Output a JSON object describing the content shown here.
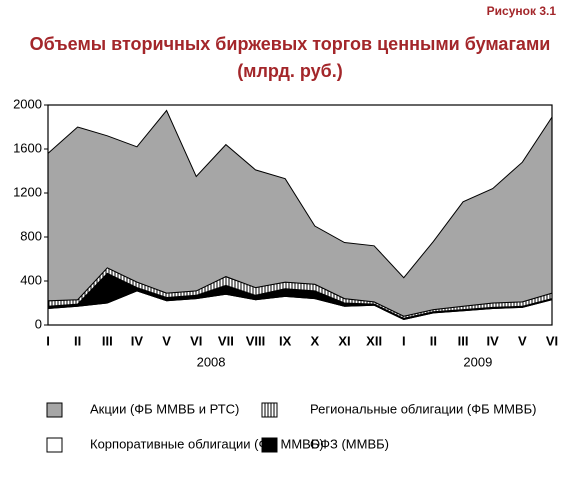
{
  "chart_data": {
    "type": "stacked_area",
    "figure_label": "Рисунок 3.1",
    "title": [
      "Объемы вторичных биржевых торгов ценными бумагами",
      "(млрд. руб.)"
    ],
    "categories": [
      "I",
      "II",
      "III",
      "IV",
      "V",
      "VI",
      "VII",
      "VIII",
      "IX",
      "X",
      "XI",
      "XII",
      "I",
      "II",
      "III",
      "IV",
      "V",
      "VI"
    ],
    "x_groups": [
      "2008",
      "2009"
    ],
    "ylim": [
      0,
      2000
    ],
    "yticks": [
      0,
      400,
      800,
      1200,
      1600,
      2000
    ],
    "series": [
      {
        "name": "Корпоративные облигации (ФБ ММВБ)",
        "color": "#ffffff",
        "values": [
          150,
          170,
          200,
          310,
          220,
          240,
          280,
          230,
          260,
          240,
          170,
          180,
          50,
          110,
          130,
          150,
          160,
          230
        ]
      },
      {
        "name": "ОФЗ (ММВБ)",
        "color": "#000000",
        "values": [
          20,
          20,
          270,
          30,
          30,
          30,
          80,
          40,
          70,
          70,
          30,
          10,
          10,
          10,
          10,
          10,
          10,
          10
        ]
      },
      {
        "name": "Региональные облигации (ФБ ММВБ)",
        "color": "#ffffff",
        "hatch": true,
        "values": [
          50,
          40,
          50,
          50,
          40,
          40,
          80,
          70,
          60,
          60,
          40,
          20,
          20,
          20,
          30,
          40,
          40,
          50
        ]
      },
      {
        "name": "Акции (ФБ ММВБ и РТС)",
        "color": "#a6a6a6",
        "values": [
          1340,
          1570,
          1200,
          1230,
          1660,
          1040,
          1200,
          1070,
          940,
          530,
          510,
          510,
          350,
          620,
          950,
          1040,
          1270,
          1600
        ]
      }
    ]
  }
}
